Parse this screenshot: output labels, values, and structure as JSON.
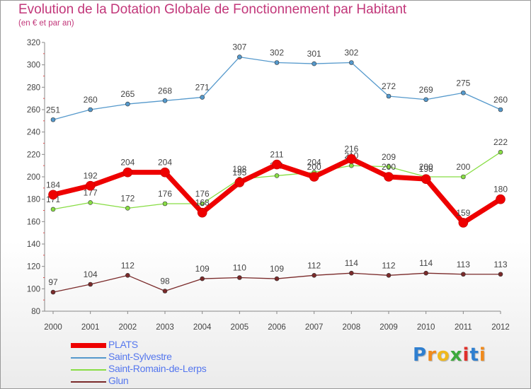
{
  "chart_data": {
    "type": "line",
    "title": "Evolution de la Dotation Globale de Fonctionnement par Habitant",
    "subtitle": "(en € et par an)",
    "xlabel": "",
    "ylabel": "",
    "categories": [
      "2000",
      "2001",
      "2002",
      "2003",
      "2004",
      "2005",
      "2006",
      "2007",
      "2008",
      "2009",
      "2010",
      "2011",
      "2012"
    ],
    "ylim": [
      80,
      320
    ],
    "yticks": [
      80,
      100,
      120,
      140,
      160,
      180,
      200,
      220,
      240,
      260,
      280,
      300,
      320
    ],
    "grid": false,
    "legend_position": "bottom-left",
    "series": [
      {
        "name": "Saint-Sylvestre",
        "color": "#5599cc",
        "values": [
          251,
          260,
          265,
          268,
          271,
          307,
          302,
          301,
          302,
          272,
          269,
          275,
          260
        ],
        "labels": [
          "251",
          "260",
          "265",
          "268",
          "271",
          "307",
          "302",
          "301",
          "302",
          "272",
          "269",
          "275",
          "260"
        ]
      },
      {
        "name": "Saint-Romain-de-Lerps",
        "color": "#88dd44",
        "values": [
          171,
          177,
          172,
          176,
          176,
          198,
          201,
          204,
          210,
          209,
          200,
          200,
          222
        ],
        "labels": [
          "171",
          "177",
          "172",
          "176",
          "176",
          "198",
          "201",
          "204",
          "210",
          "209",
          "200",
          "200",
          "222"
        ]
      },
      {
        "name": "Glun",
        "color": "#7a2a2a",
        "values": [
          97,
          104,
          112,
          98,
          109,
          110,
          109,
          112,
          114,
          112,
          114,
          113,
          113
        ],
        "labels": [
          "97",
          "104",
          "112",
          "98",
          "109",
          "110",
          "109",
          "112",
          "114",
          "112",
          "114",
          "113",
          "113"
        ]
      },
      {
        "name": "PLATS",
        "color": "#ee0000",
        "values": [
          184,
          192,
          204,
          204,
          168,
          195,
          211,
          200,
          216,
          200,
          198,
          159,
          180
        ],
        "labels": [
          "184",
          "192",
          "204",
          "204",
          "168",
          "195",
          "211",
          "200",
          "216",
          "200",
          "198",
          "159",
          "180"
        ]
      }
    ]
  },
  "legend": {
    "items": [
      {
        "label": "PLATS",
        "color": "#ee0000"
      },
      {
        "label": "Saint-Sylvestre",
        "color": "#5599cc"
      },
      {
        "label": "Saint-Romain-de-Lerps",
        "color": "#88dd44"
      },
      {
        "label": "Glun",
        "color": "#7a2a2a"
      }
    ]
  },
  "logo": {
    "text": "Proxiti",
    "letters": [
      {
        "ch": "P",
        "color": "#2f7fd0"
      },
      {
        "ch": "r",
        "color": "#f08a1c"
      },
      {
        "ch": "o",
        "color": "#f0b81c"
      },
      {
        "ch": "x",
        "color": "#3daa3d"
      },
      {
        "ch": "i",
        "color": "#e0302a"
      },
      {
        "ch": "t",
        "color": "#2f7fd0"
      },
      {
        "ch": "i",
        "color": "#f08a1c"
      }
    ]
  }
}
